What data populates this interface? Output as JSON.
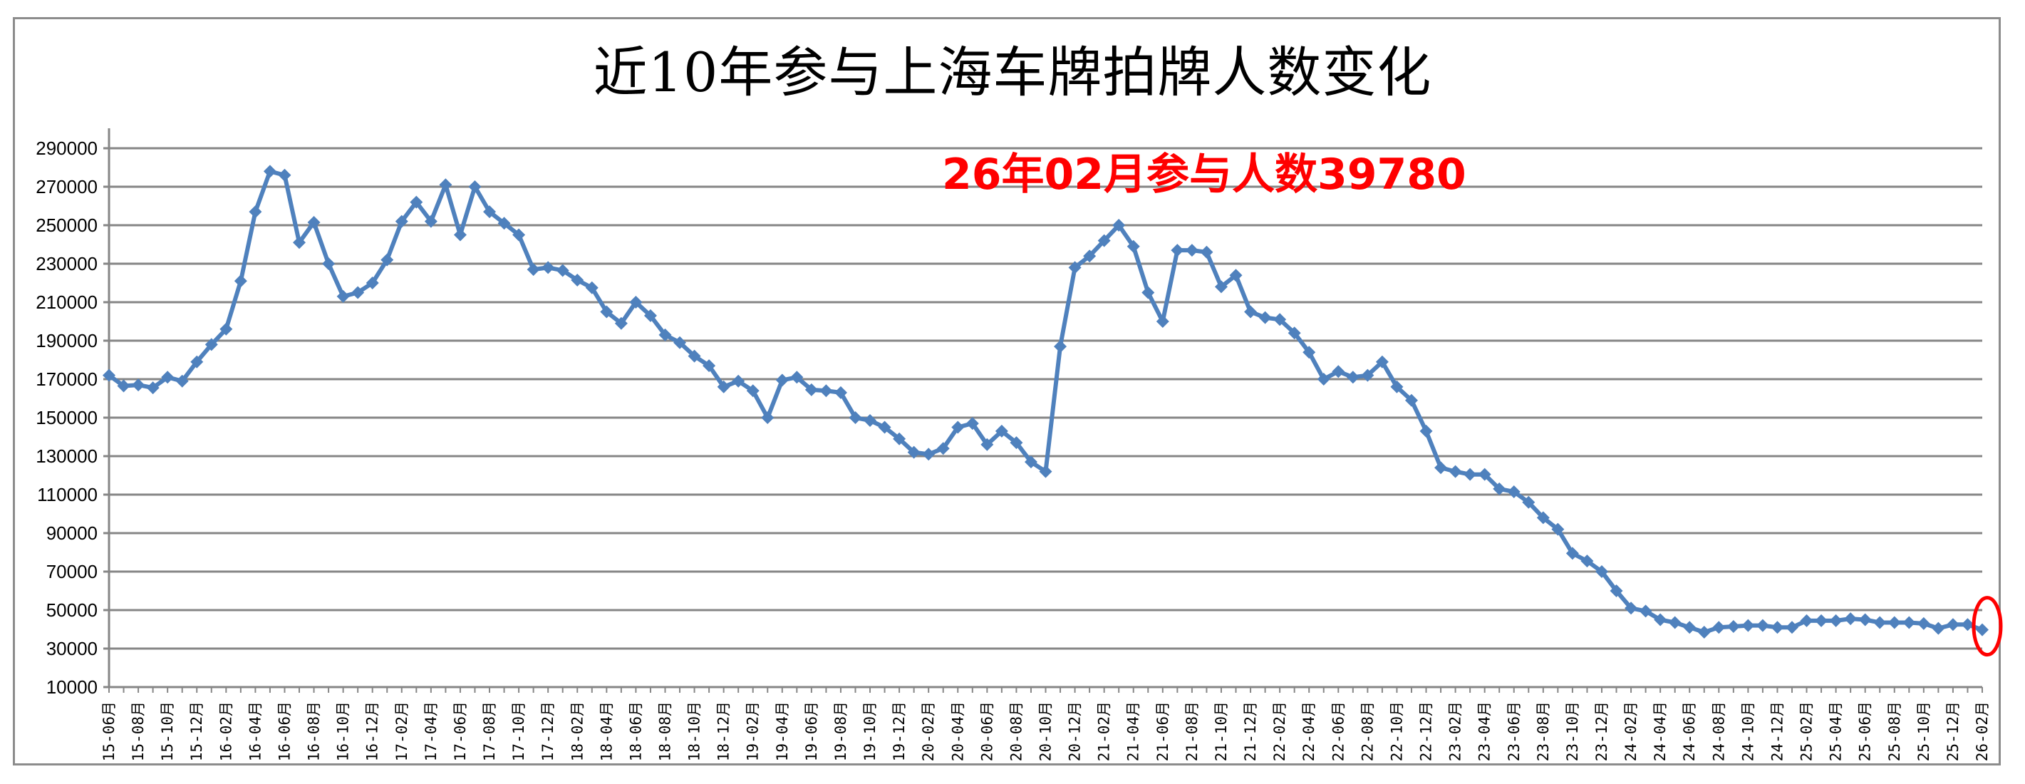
{
  "chart_data": {
    "type": "line",
    "title": "近10年参与上海车牌拍牌人数变化",
    "annotation": "26年02月参与人数39780",
    "highlight": {
      "category": "26-02月",
      "value": 39780,
      "shape": "red-ellipse"
    },
    "xlabel": "",
    "ylabel": "",
    "ylim": [
      10000,
      290000
    ],
    "yticks": [
      10000,
      30000,
      50000,
      70000,
      90000,
      110000,
      130000,
      150000,
      170000,
      190000,
      210000,
      230000,
      250000,
      270000,
      290000
    ],
    "grid": true,
    "legend": "none",
    "series_color": "#4f81bd",
    "highlight_color": "#ff0000",
    "x_label_every": 2,
    "categories": [
      "15-06月",
      "15-07月",
      "15-08月",
      "15-09月",
      "15-10月",
      "15-11月",
      "15-12月",
      "16-01月",
      "16-02月",
      "16-03月",
      "16-04月",
      "16-05月",
      "16-06月",
      "16-07月",
      "16-08月",
      "16-09月",
      "16-10月",
      "16-11月",
      "16-12月",
      "17-01月",
      "17-02月",
      "17-03月",
      "17-04月",
      "17-05月",
      "17-06月",
      "17-07月",
      "17-08月",
      "17-09月",
      "17-10月",
      "17-11月",
      "17-12月",
      "18-01月",
      "18-02月",
      "18-03月",
      "18-04月",
      "18-05月",
      "18-06月",
      "18-07月",
      "18-08月",
      "18-09月",
      "18-10月",
      "18-11月",
      "18-12月",
      "19-01月",
      "19-02月",
      "19-03月",
      "19-04月",
      "19-05月",
      "19-06月",
      "19-07月",
      "19-08月",
      "19-09月",
      "19-10月",
      "19-11月",
      "19-12月",
      "20-01月",
      "20-02月",
      "20-03月",
      "20-04月",
      "20-05月",
      "20-06月",
      "20-07月",
      "20-08月",
      "20-09月",
      "20-10月",
      "20-11月",
      "20-12月",
      "21-01月",
      "21-02月",
      "21-03月",
      "21-04月",
      "21-05月",
      "21-06月",
      "21-07月",
      "21-08月",
      "21-09月",
      "21-10月",
      "21-11月",
      "21-12月",
      "22-01月",
      "22-02月",
      "22-03月",
      "22-04月",
      "22-05月",
      "22-06月",
      "22-07月",
      "22-08月",
      "22-09月",
      "22-10月",
      "22-11月",
      "22-12月",
      "23-01月",
      "23-02月",
      "23-03月",
      "23-04月",
      "23-05月",
      "23-06月",
      "23-07月",
      "23-08月",
      "23-09月",
      "23-10月",
      "23-11月",
      "23-12月",
      "24-01月",
      "24-02月",
      "24-03月",
      "24-04月",
      "24-05月",
      "24-06月",
      "24-07月",
      "24-08月",
      "24-09月",
      "24-10月",
      "24-11月",
      "24-12月",
      "25-01月",
      "25-02月",
      "25-03月",
      "25-04月",
      "25-05月",
      "25-06月",
      "25-07月",
      "25-08月",
      "25-09月",
      "25-10月",
      "25-11月",
      "25-12月",
      "26-01月",
      "26-02月"
    ],
    "series": [
      {
        "name": "参与人数",
        "values": [
          172000,
          166500,
          167000,
          165500,
          171000,
          169000,
          179000,
          188000,
          196000,
          221000,
          257000,
          278000,
          276000,
          241000,
          251500,
          230000,
          213000,
          215000,
          220000,
          232000,
          252000,
          262000,
          252000,
          271000,
          245000,
          270000,
          257000,
          251000,
          245000,
          227000,
          228000,
          226500,
          221500,
          217500,
          205000,
          199000,
          210000,
          203000,
          193000,
          189000,
          182000,
          177000,
          166000,
          169000,
          164000,
          150000,
          169500,
          171000,
          164500,
          164000,
          163000,
          150000,
          148500,
          145000,
          139000,
          132000,
          131000,
          134000,
          145000,
          147000,
          136000,
          143000,
          137000,
          127000,
          122000,
          187000,
          228000,
          234000,
          242000,
          250000,
          239000,
          215000,
          200000,
          237000,
          237000,
          236000,
          218000,
          224000,
          205000,
          202000,
          201000,
          194000,
          184000,
          170000,
          174000,
          171000,
          172000,
          179000,
          166000,
          159000,
          143000,
          124000,
          122000,
          120500,
          120500,
          113000,
          111500,
          106000,
          98000,
          92000,
          79500,
          75500,
          70000,
          60000,
          51000,
          49500,
          45000,
          43500,
          41000,
          38500,
          41000,
          41500,
          42000,
          42000,
          41000,
          41000,
          44500,
          44500,
          44500,
          45500,
          45000,
          43500,
          43500,
          43500,
          43000,
          40500,
          42500,
          42500,
          39780
        ]
      }
    ]
  }
}
